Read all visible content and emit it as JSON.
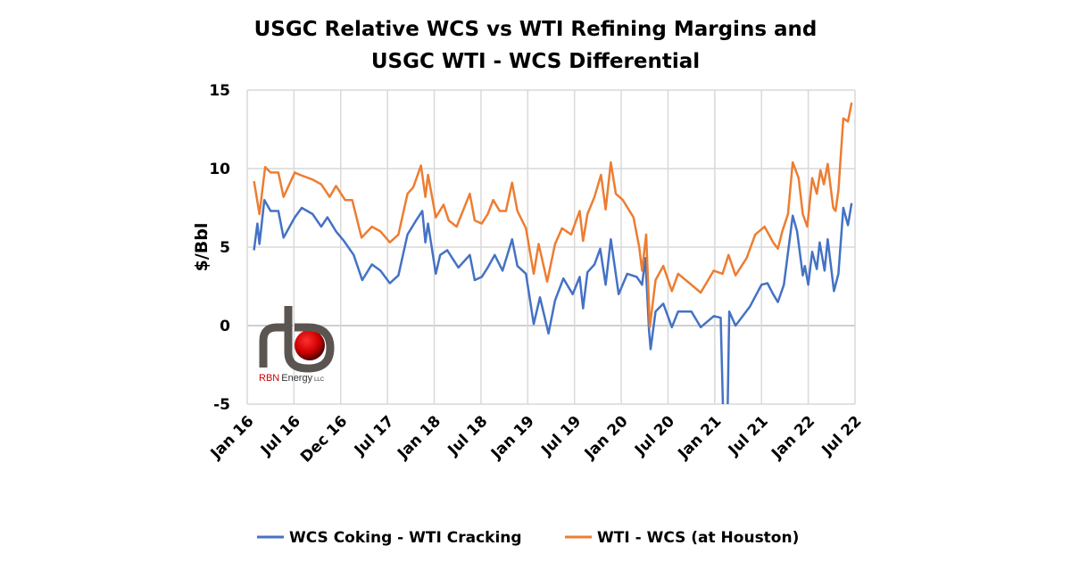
{
  "chart_data": {
    "type": "line",
    "title": "USGC Relative WCS vs WTI Refining Margins and",
    "title_line2": "USGC WTI - WCS Differential",
    "xlabel": "",
    "ylabel": "$/Bbl",
    "ylim": [
      -5,
      15
    ],
    "yticks": [
      "15",
      "10",
      "5",
      "0",
      "-5"
    ],
    "xticks": [
      "Jan 16",
      "Jul 16",
      "Dec 16",
      "Jul 17",
      "Jan 18",
      "Jul 18",
      "Jan 19",
      "Jul 19",
      "Jan 20",
      "Jul 20",
      "Jan 21",
      "Jul 21",
      "Jan 22",
      "Jul 22"
    ],
    "xlim": [
      "2016-01-01",
      "2022-07-01"
    ],
    "grid": true,
    "legend": "bottom",
    "series": [
      {
        "name": "WCS Coking - WTI Cracking",
        "color": "#4472C4",
        "points": [
          [
            "2016-01-27",
            4.8
          ],
          [
            "2016-02-10",
            6.5
          ],
          [
            "2016-02-18",
            5.2
          ],
          [
            "2016-03-07",
            8.0
          ],
          [
            "2016-04-01",
            7.3
          ],
          [
            "2016-05-01",
            7.3
          ],
          [
            "2016-05-21",
            5.6
          ],
          [
            "2016-07-04",
            6.9
          ],
          [
            "2016-08-01",
            7.5
          ],
          [
            "2016-09-13",
            7.1
          ],
          [
            "2016-10-16",
            6.3
          ],
          [
            "2016-11-10",
            6.9
          ],
          [
            "2016-12-13",
            6.0
          ],
          [
            "2017-01-13",
            5.4
          ],
          [
            "2017-02-21",
            4.5
          ],
          [
            "2017-03-24",
            2.9
          ],
          [
            "2017-05-01",
            3.9
          ],
          [
            "2017-06-04",
            3.5
          ],
          [
            "2017-07-10",
            2.7
          ],
          [
            "2017-08-13",
            3.2
          ],
          [
            "2017-09-18",
            5.8
          ],
          [
            "2017-10-21",
            6.7
          ],
          [
            "2017-11-15",
            7.3
          ],
          [
            "2017-11-27",
            5.3
          ],
          [
            "2017-12-07",
            6.5
          ],
          [
            "2018-01-07",
            3.3
          ],
          [
            "2018-01-24",
            4.5
          ],
          [
            "2018-02-21",
            4.8
          ],
          [
            "2018-04-04",
            3.7
          ],
          [
            "2018-05-18",
            4.5
          ],
          [
            "2018-06-07",
            2.9
          ],
          [
            "2018-07-04",
            3.1
          ],
          [
            "2018-07-27",
            3.7
          ],
          [
            "2018-08-24",
            4.5
          ],
          [
            "2018-09-24",
            3.5
          ],
          [
            "2018-11-01",
            5.5
          ],
          [
            "2018-11-21",
            3.8
          ],
          [
            "2018-12-24",
            3.3
          ],
          [
            "2019-01-24",
            0.1
          ],
          [
            "2019-02-18",
            1.8
          ],
          [
            "2019-03-21",
            -0.5
          ],
          [
            "2019-04-16",
            1.6
          ],
          [
            "2019-05-18",
            3.0
          ],
          [
            "2019-06-24",
            2.0
          ],
          [
            "2019-07-21",
            3.1
          ],
          [
            "2019-08-04",
            1.1
          ],
          [
            "2019-08-21",
            3.4
          ],
          [
            "2019-09-18",
            3.9
          ],
          [
            "2019-10-10",
            4.9
          ],
          [
            "2019-11-01",
            2.6
          ],
          [
            "2019-11-21",
            5.5
          ],
          [
            "2019-12-21",
            2.0
          ],
          [
            "2020-01-24",
            3.3
          ],
          [
            "2020-03-01",
            3.1
          ],
          [
            "2020-03-21",
            2.6
          ],
          [
            "2020-04-04",
            4.3
          ],
          [
            "2020-04-18",
            -0.3
          ],
          [
            "2020-04-24",
            -1.5
          ],
          [
            "2020-05-13",
            0.9
          ],
          [
            "2020-06-13",
            1.4
          ],
          [
            "2020-07-16",
            -0.1
          ],
          [
            "2020-08-10",
            0.9
          ],
          [
            "2020-10-01",
            0.9
          ],
          [
            "2020-11-07",
            -0.1
          ],
          [
            "2020-12-27",
            0.6
          ],
          [
            "2021-01-24",
            0.5
          ],
          [
            "2021-02-07",
            -8
          ],
          [
            "2021-02-18",
            -8
          ],
          [
            "2021-02-27",
            0.9
          ],
          [
            "2021-03-21",
            0.0
          ],
          [
            "2021-05-16",
            1.2
          ],
          [
            "2021-07-01",
            2.6
          ],
          [
            "2021-07-24",
            2.7
          ],
          [
            "2021-08-16",
            2.0
          ],
          [
            "2021-09-04",
            1.5
          ],
          [
            "2021-09-27",
            2.6
          ],
          [
            "2021-11-01",
            7.0
          ],
          [
            "2021-11-18",
            6.0
          ],
          [
            "2021-12-10",
            3.2
          ],
          [
            "2021-12-18",
            3.8
          ],
          [
            "2022-01-01",
            2.6
          ],
          [
            "2022-01-16",
            4.7
          ],
          [
            "2022-02-04",
            3.6
          ],
          [
            "2022-02-15",
            5.3
          ],
          [
            "2022-03-04",
            3.5
          ],
          [
            "2022-03-16",
            5.5
          ],
          [
            "2022-04-10",
            2.2
          ],
          [
            "2022-04-27",
            3.3
          ],
          [
            "2022-05-16",
            7.5
          ],
          [
            "2022-06-04",
            6.4
          ],
          [
            "2022-06-18",
            7.8
          ]
        ]
      },
      {
        "name": "WTI - WCS (at Houston)",
        "color": "#ED7D31",
        "points": [
          [
            "2016-01-27",
            9.2
          ],
          [
            "2016-02-10",
            7.9
          ],
          [
            "2016-02-18",
            7.1
          ],
          [
            "2016-03-10",
            10.1
          ],
          [
            "2016-04-01",
            9.75
          ],
          [
            "2016-05-01",
            9.75
          ],
          [
            "2016-05-21",
            8.2
          ],
          [
            "2016-07-04",
            9.75
          ],
          [
            "2016-07-24",
            9.6
          ],
          [
            "2016-09-13",
            9.3
          ],
          [
            "2016-10-16",
            9.0
          ],
          [
            "2016-11-18",
            8.2
          ],
          [
            "2016-12-13",
            8.9
          ],
          [
            "2017-01-18",
            8.0
          ],
          [
            "2017-02-15",
            8.0
          ],
          [
            "2017-03-21",
            5.6
          ],
          [
            "2017-05-01",
            6.3
          ],
          [
            "2017-06-04",
            6.0
          ],
          [
            "2017-07-10",
            5.3
          ],
          [
            "2017-08-13",
            5.8
          ],
          [
            "2017-09-18",
            8.4
          ],
          [
            "2017-10-10",
            8.8
          ],
          [
            "2017-11-10",
            10.2
          ],
          [
            "2017-11-27",
            8.2
          ],
          [
            "2017-12-07",
            9.6
          ],
          [
            "2018-01-07",
            6.9
          ],
          [
            "2018-02-07",
            7.7
          ],
          [
            "2018-02-27",
            6.7
          ],
          [
            "2018-03-27",
            6.3
          ],
          [
            "2018-05-18",
            8.4
          ],
          [
            "2018-06-07",
            6.7
          ],
          [
            "2018-07-04",
            6.5
          ],
          [
            "2018-07-27",
            7.1
          ],
          [
            "2018-08-18",
            8.0
          ],
          [
            "2018-09-13",
            7.3
          ],
          [
            "2018-10-07",
            7.3
          ],
          [
            "2018-11-01",
            9.1
          ],
          [
            "2018-11-21",
            7.3
          ],
          [
            "2018-12-24",
            6.2
          ],
          [
            "2019-01-24",
            3.3
          ],
          [
            "2019-02-13",
            5.2
          ],
          [
            "2019-03-16",
            2.8
          ],
          [
            "2019-04-16",
            5.2
          ],
          [
            "2019-05-13",
            6.2
          ],
          [
            "2019-06-18",
            5.8
          ],
          [
            "2019-07-21",
            7.3
          ],
          [
            "2019-08-04",
            5.4
          ],
          [
            "2019-08-21",
            7.1
          ],
          [
            "2019-09-18",
            8.2
          ],
          [
            "2019-10-13",
            9.6
          ],
          [
            "2019-11-01",
            7.4
          ],
          [
            "2019-11-21",
            10.4
          ],
          [
            "2019-12-10",
            8.4
          ],
          [
            "2020-01-07",
            8.0
          ],
          [
            "2020-02-18",
            6.9
          ],
          [
            "2020-03-10",
            5.0
          ],
          [
            "2020-03-21",
            3.5
          ],
          [
            "2020-04-07",
            5.8
          ],
          [
            "2020-04-21",
            -0.1
          ],
          [
            "2020-05-13",
            2.9
          ],
          [
            "2020-06-13",
            3.8
          ],
          [
            "2020-07-16",
            2.2
          ],
          [
            "2020-08-10",
            3.3
          ],
          [
            "2020-09-24",
            2.7
          ],
          [
            "2020-11-07",
            2.1
          ],
          [
            "2020-12-27",
            3.5
          ],
          [
            "2021-02-01",
            3.3
          ],
          [
            "2021-02-24",
            4.5
          ],
          [
            "2021-03-21",
            3.2
          ],
          [
            "2021-05-04",
            4.3
          ],
          [
            "2021-06-07",
            5.8
          ],
          [
            "2021-07-13",
            6.3
          ],
          [
            "2021-08-16",
            5.3
          ],
          [
            "2021-09-04",
            4.9
          ],
          [
            "2021-09-21",
            6.0
          ],
          [
            "2021-10-13",
            7.1
          ],
          [
            "2021-11-01",
            10.4
          ],
          [
            "2021-11-24",
            9.4
          ],
          [
            "2021-12-10",
            7.1
          ],
          [
            "2021-12-27",
            6.3
          ],
          [
            "2022-01-16",
            9.4
          ],
          [
            "2022-02-04",
            8.4
          ],
          [
            "2022-02-18",
            9.9
          ],
          [
            "2022-03-01",
            9.0
          ],
          [
            "2022-03-16",
            10.3
          ],
          [
            "2022-04-07",
            7.5
          ],
          [
            "2022-04-16",
            7.3
          ],
          [
            "2022-04-27",
            8.6
          ],
          [
            "2022-05-16",
            13.2
          ],
          [
            "2022-06-04",
            13.0
          ],
          [
            "2022-06-18",
            14.2
          ]
        ]
      }
    ]
  },
  "logo": {
    "text_red": "RBN",
    "text_dark": "Energy",
    "suffix": "LLC"
  }
}
